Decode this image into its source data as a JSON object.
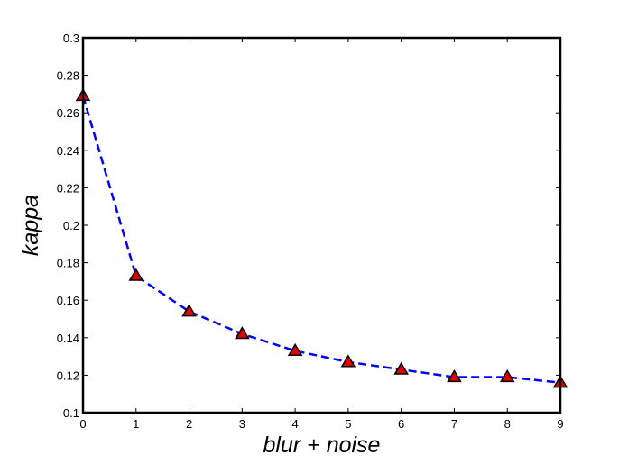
{
  "chart_data": {
    "type": "line",
    "title": "",
    "xlabel": "blur + noise",
    "ylabel": "kappa",
    "xlim": [
      0,
      9
    ],
    "ylim": [
      0.1,
      0.3
    ],
    "x_ticks": [
      0,
      1,
      2,
      3,
      4,
      5,
      6,
      7,
      8,
      9
    ],
    "y_ticks": [
      0.1,
      0.12,
      0.14,
      0.16,
      0.18,
      0.2,
      0.22,
      0.24,
      0.26,
      0.28,
      0.3
    ],
    "x_tick_labels": [
      "0",
      "1",
      "2",
      "3",
      "4",
      "5",
      "6",
      "7",
      "8",
      "9"
    ],
    "y_tick_labels": [
      "0.1",
      "0.12",
      "0.14",
      "0.16",
      "0.18",
      "0.2",
      "0.22",
      "0.24",
      "0.26",
      "0.28",
      "0.3"
    ],
    "grid": false,
    "series": [
      {
        "x": [
          0,
          1,
          2,
          3,
          4,
          5,
          6,
          7,
          8,
          9
        ],
        "values": [
          0.269,
          0.173,
          0.154,
          0.142,
          0.133,
          0.127,
          0.123,
          0.119,
          0.119,
          0.116
        ],
        "line_color": "#0000ff",
        "line_style": "dashed",
        "marker": "triangle",
        "marker_color": "#dd0000"
      }
    ]
  }
}
